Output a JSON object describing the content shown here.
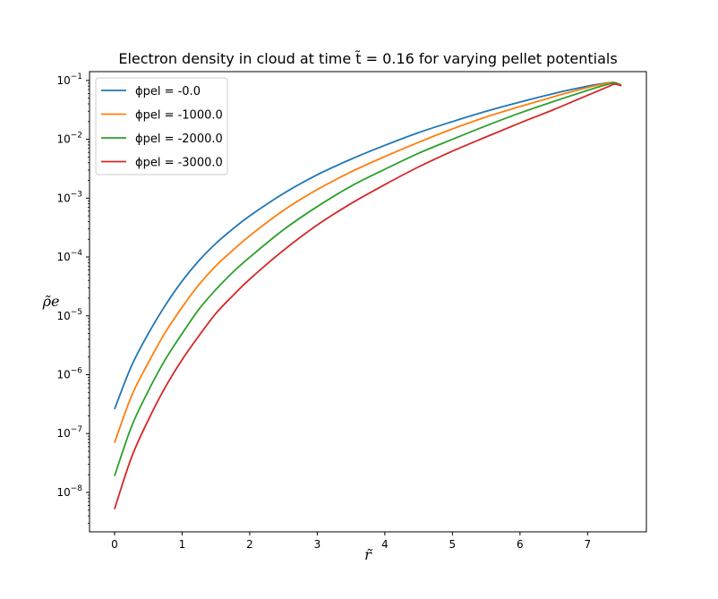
{
  "chart_data": {
    "type": "line",
    "title": "Electron density in cloud at time t̃ = 0.16 for varying pellet potentials",
    "xlabel": "r̃",
    "ylabel": "ρ̃e",
    "xlim": [
      -0.37,
      7.87
    ],
    "ylim_log10": [
      -8.67,
      -0.85
    ],
    "yscale": "log",
    "x_ticks": [
      0,
      1,
      2,
      3,
      4,
      5,
      6,
      7
    ],
    "y_ticks": [
      "10^-8",
      "10^-7",
      "10^-6",
      "10^-5",
      "10^-4",
      "10^-3",
      "10^-2",
      "10^-1"
    ],
    "legend_position": "upper-left",
    "grid": false,
    "series": [
      {
        "name": "ϕpel = -0.0",
        "color": "#1f77b4",
        "x": [
          0.0,
          0.25,
          0.5,
          0.75,
          1.0,
          1.25,
          1.5,
          1.75,
          2.0,
          2.5,
          3.0,
          3.5,
          4.0,
          4.5,
          5.0,
          5.5,
          6.0,
          6.5,
          7.0,
          7.3,
          7.4,
          7.5
        ],
        "y": [
          2.6e-07,
          1.4e-06,
          5e-06,
          1.5e-05,
          3.9e-05,
          8.7e-05,
          0.00017,
          0.0003,
          0.0005,
          0.0012,
          0.0025,
          0.0046,
          0.0079,
          0.013,
          0.02,
          0.03,
          0.043,
          0.06,
          0.08,
          0.091,
          0.092,
          0.083
        ]
      },
      {
        "name": "ϕpel = -1000.0",
        "color": "#ff7f0e",
        "x": [
          0.0,
          0.25,
          0.5,
          0.75,
          1.0,
          1.25,
          1.5,
          1.75,
          2.0,
          2.5,
          3.0,
          3.5,
          4.0,
          4.5,
          5.0,
          5.5,
          6.0,
          6.5,
          7.0,
          7.3,
          7.4,
          7.5
        ],
        "y": [
          7e-08,
          4.3e-07,
          1.6e-06,
          5.2e-06,
          1.4e-05,
          3.4e-05,
          7.1e-05,
          0.00013,
          0.00023,
          0.00062,
          0.0014,
          0.0028,
          0.0051,
          0.0089,
          0.015,
          0.024,
          0.036,
          0.053,
          0.076,
          0.09,
          0.092,
          0.083
        ]
      },
      {
        "name": "ϕpel = -2000.0",
        "color": "#2ca02c",
        "x": [
          0.0,
          0.25,
          0.5,
          0.75,
          1.0,
          1.25,
          1.5,
          1.75,
          2.0,
          2.5,
          3.0,
          3.5,
          4.0,
          4.5,
          5.0,
          5.5,
          6.0,
          6.5,
          7.0,
          7.3,
          7.4,
          7.5
        ],
        "y": [
          1.9e-08,
          1.3e-07,
          5.3e-07,
          1.8e-06,
          5e-06,
          1.3e-05,
          2.8e-05,
          5.5e-05,
          9.9e-05,
          0.00029,
          0.00072,
          0.0016,
          0.0031,
          0.0058,
          0.01,
          0.017,
          0.028,
          0.044,
          0.068,
          0.086,
          0.091,
          0.083
        ]
      },
      {
        "name": "ϕpel = -3000.0",
        "color": "#d62728",
        "x": [
          0.0,
          0.25,
          0.5,
          0.75,
          1.0,
          1.25,
          1.5,
          1.75,
          2.0,
          2.5,
          3.0,
          3.5,
          4.0,
          4.5,
          5.0,
          5.5,
          6.0,
          6.5,
          7.0,
          7.3,
          7.4,
          7.5
        ],
        "y": [
          5.2e-09,
          3.9e-08,
          1.7e-07,
          6.1e-07,
          1.8e-06,
          4.6e-06,
          1.1e-05,
          2.2e-05,
          4.2e-05,
          0.00013,
          0.00035,
          0.00081,
          0.0017,
          0.0034,
          0.0063,
          0.011,
          0.019,
          0.032,
          0.056,
          0.078,
          0.087,
          0.081
        ]
      }
    ]
  }
}
